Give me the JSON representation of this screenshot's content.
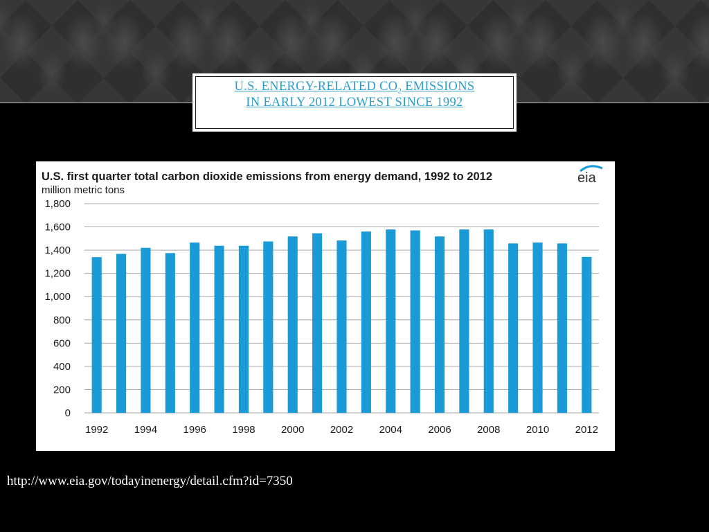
{
  "slide": {
    "title_part1": "U.S. ENERGY-RELATED CO",
    "title_sub": "2",
    "title_part2": " EMISSIONS",
    "title_line2": "IN EARLY 2012 LOWEST SINCE 1992",
    "source_url": "http://www.eia.gov/todayinenergy/detail.cfm?id=7350",
    "accent_color": "#2e9ec8"
  },
  "chart_data": {
    "type": "bar",
    "title": "U.S. first quarter total carbon dioxide emissions from energy demand, 1992 to 2012",
    "ylabel": "million metric tons",
    "logo": "eia",
    "categories": [
      "1992",
      "1993",
      "1994",
      "1995",
      "1996",
      "1997",
      "1998",
      "1999",
      "2000",
      "2001",
      "2002",
      "2003",
      "2004",
      "2005",
      "2006",
      "2007",
      "2008",
      "2009",
      "2010",
      "2011",
      "2012"
    ],
    "values": [
      1340,
      1368,
      1420,
      1375,
      1465,
      1438,
      1438,
      1475,
      1518,
      1545,
      1483,
      1560,
      1578,
      1570,
      1518,
      1578,
      1578,
      1458,
      1465,
      1458,
      1342
    ],
    "x_tick_labels": [
      "1992",
      "1994",
      "1996",
      "1998",
      "2000",
      "2002",
      "2004",
      "2006",
      "2008",
      "2010",
      "2012"
    ],
    "y_ticks": [
      0,
      200,
      400,
      600,
      800,
      1000,
      1200,
      1400,
      1600,
      1800
    ],
    "y_tick_labels": [
      "0",
      "200",
      "400",
      "600",
      "800",
      "1,000",
      "1,200",
      "1,400",
      "1,600",
      "1,800"
    ],
    "ylim": [
      0,
      1800
    ],
    "grid": true,
    "bar_color": "#1a9bd7",
    "grid_color": "#a6a6a6"
  }
}
